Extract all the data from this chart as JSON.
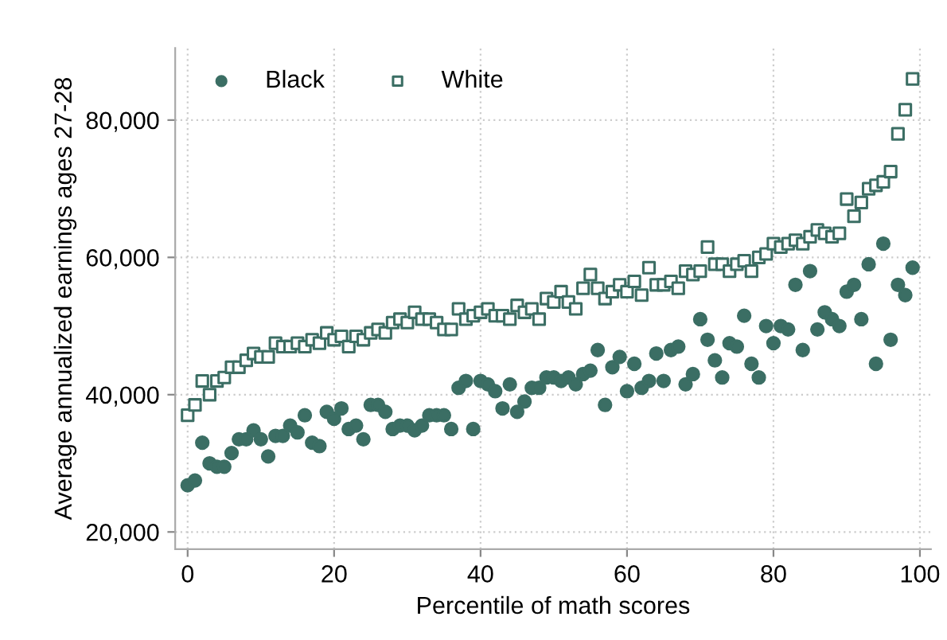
{
  "chart_data": {
    "type": "scatter",
    "xlabel": "Percentile of math scores",
    "ylabel": "Average annualized earnings ages 27-28",
    "x": [
      0,
      1,
      2,
      3,
      4,
      5,
      6,
      7,
      8,
      9,
      10,
      11,
      12,
      13,
      14,
      15,
      16,
      17,
      18,
      19,
      20,
      21,
      22,
      23,
      24,
      25,
      26,
      27,
      28,
      29,
      30,
      31,
      32,
      33,
      34,
      35,
      36,
      37,
      38,
      39,
      40,
      41,
      42,
      43,
      44,
      45,
      46,
      47,
      48,
      49,
      50,
      51,
      52,
      53,
      54,
      55,
      56,
      57,
      58,
      59,
      60,
      61,
      62,
      63,
      64,
      65,
      66,
      67,
      68,
      69,
      70,
      71,
      72,
      73,
      74,
      75,
      76,
      77,
      78,
      79,
      80,
      81,
      82,
      83,
      84,
      85,
      86,
      87,
      88,
      89,
      90,
      91,
      92,
      93,
      94,
      95,
      96,
      97,
      98,
      99
    ],
    "series": [
      {
        "name": "Black",
        "color": "#3b6e64",
        "marker": "circle",
        "values": [
          26800,
          27500,
          33000,
          30000,
          29500,
          29500,
          31500,
          33500,
          33500,
          34800,
          33500,
          31000,
          34000,
          34000,
          35500,
          34500,
          37000,
          33000,
          32500,
          37500,
          36500,
          38000,
          35000,
          35500,
          33500,
          38500,
          38500,
          37500,
          35000,
          35500,
          35500,
          34800,
          35500,
          37000,
          37000,
          37000,
          35000,
          41000,
          42000,
          35000,
          42000,
          41500,
          40500,
          38000,
          41500,
          37500,
          39000,
          41000,
          41000,
          42500,
          42500,
          42000,
          42500,
          41500,
          43000,
          43500,
          46500,
          38500,
          44000,
          45500,
          40500,
          44500,
          41000,
          42000,
          46000,
          42000,
          46500,
          47000,
          41500,
          43000,
          51000,
          48000,
          45000,
          42500,
          47500,
          47000,
          51500,
          44500,
          42500,
          50000,
          47500,
          50000,
          49500,
          56000,
          46500,
          58000,
          49500,
          52000,
          51000,
          50000,
          55000,
          56000,
          51000,
          59000,
          44500,
          62000,
          48000,
          56000,
          54500,
          58500
        ]
      },
      {
        "name": "White",
        "color": "#3b6e64",
        "marker": "square",
        "values": [
          37000,
          38500,
          42000,
          40000,
          42000,
          42500,
          44000,
          44000,
          45000,
          46000,
          45500,
          45500,
          47500,
          47000,
          47000,
          47500,
          47000,
          48000,
          47500,
          49000,
          48000,
          48500,
          47000,
          48500,
          48000,
          49000,
          49500,
          49000,
          50500,
          51000,
          50500,
          52000,
          51000,
          51000,
          50500,
          49500,
          49500,
          52500,
          51000,
          51500,
          52000,
          52500,
          51500,
          51500,
          51000,
          53000,
          52000,
          52500,
          51000,
          54000,
          53500,
          55000,
          53500,
          52500,
          55500,
          57500,
          55500,
          54000,
          55000,
          56000,
          55000,
          56500,
          54500,
          58500,
          56000,
          56000,
          56500,
          55500,
          58000,
          57500,
          58000,
          61500,
          59000,
          59000,
          58000,
          59000,
          59500,
          58000,
          60000,
          60500,
          62000,
          61500,
          62000,
          62500,
          62000,
          63000,
          64000,
          63500,
          63000,
          63500,
          68500,
          66000,
          68000,
          70000,
          70500,
          71000,
          72500,
          78000,
          81500,
          86000
        ]
      }
    ],
    "xlim": [
      -1.7,
      101.5
    ],
    "ylim": [
      17500,
      90500
    ],
    "xticks": [
      0,
      20,
      40,
      60,
      80,
      100
    ],
    "yticks": [
      {
        "value": 20000,
        "label": "20,000"
      },
      {
        "value": 40000,
        "label": "40,000"
      },
      {
        "value": 60000,
        "label": "60,000"
      },
      {
        "value": 80000,
        "label": "80,000"
      }
    ],
    "grid": true,
    "legend": "top left"
  }
}
